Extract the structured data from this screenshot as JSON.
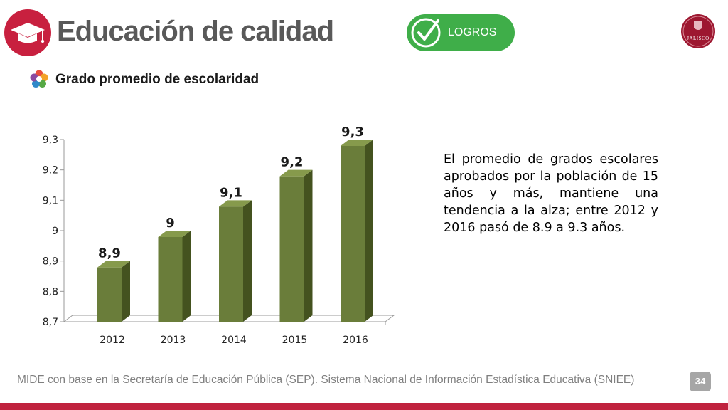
{
  "header": {
    "title": "Educación de calidad",
    "badge_icon": "graduation-cap-icon",
    "badge_color": "#c8203f",
    "achievement_label": "LOGROS",
    "achievement_icon": "checkmark-icon",
    "achievement_color": "#3fae49",
    "logo_text": "JALISCO",
    "logo_color": "#9d1730"
  },
  "section": {
    "icon": "colorful-flower-icon",
    "subtitle": "Grado promedio de escolaridad"
  },
  "chart_data": {
    "type": "bar",
    "categories": [
      "2012",
      "2013",
      "2014",
      "2015",
      "2016"
    ],
    "values": [
      8.9,
      9.0,
      9.1,
      9.2,
      9.3
    ],
    "data_labels": [
      "8,9",
      "9",
      "9,1",
      "9,2",
      "9,3"
    ],
    "yticks": [
      8.7,
      8.8,
      8.9,
      9.0,
      9.1,
      9.2,
      9.3
    ],
    "ytick_labels": [
      "8,7",
      "8,8",
      "8,9",
      "9",
      "9,1",
      "9,2",
      "9,3"
    ],
    "ylim": [
      8.7,
      9.3
    ],
    "title": "",
    "xlabel": "",
    "ylabel": "",
    "grid": false,
    "legend": "none",
    "bar_color": "#6a7d3a",
    "bar_side_color": "#44521f",
    "bar_top_color": "#869a4c",
    "style": "3d"
  },
  "description": "El promedio de grados escolares aprobados por la población de 15 años y más, mantiene una tendencia a la alza; entre  2012 y 2016 pasó de 8.9 a 9.3 años.",
  "footer": {
    "source": "MIDE con base en la Secretaría de Educación Pública (SEP). Sistema Nacional de Información Estadística Educativa (SNIEE)",
    "page_number": "34",
    "bar_color": "#c0223e"
  }
}
